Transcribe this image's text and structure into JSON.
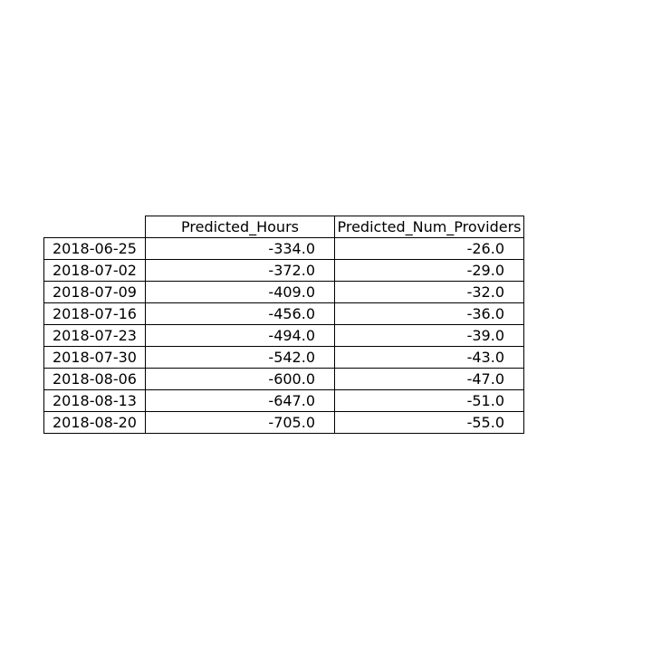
{
  "chart_data": {
    "type": "table",
    "columns": [
      "Predicted_Hours",
      "Predicted_Num_Providers"
    ],
    "rows": [
      {
        "index": "2018-06-25",
        "values": [
          "-334.0",
          "-26.0"
        ]
      },
      {
        "index": "2018-07-02",
        "values": [
          "-372.0",
          "-29.0"
        ]
      },
      {
        "index": "2018-07-09",
        "values": [
          "-409.0",
          "-32.0"
        ]
      },
      {
        "index": "2018-07-16",
        "values": [
          "-456.0",
          "-36.0"
        ]
      },
      {
        "index": "2018-07-23",
        "values": [
          "-494.0",
          "-39.0"
        ]
      },
      {
        "index": "2018-07-30",
        "values": [
          "-542.0",
          "-43.0"
        ]
      },
      {
        "index": "2018-08-06",
        "values": [
          "-600.0",
          "-47.0"
        ]
      },
      {
        "index": "2018-08-13",
        "values": [
          "-647.0",
          "-51.0"
        ]
      },
      {
        "index": "2018-08-20",
        "values": [
          "-705.0",
          "-55.0"
        ]
      }
    ],
    "colors": {
      "border": "#000000",
      "background": "#ffffff",
      "text": "#000000"
    }
  }
}
